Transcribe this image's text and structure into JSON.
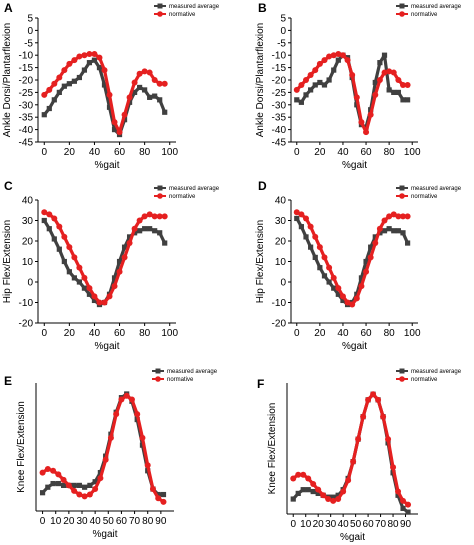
{
  "chart_data": [
    {
      "panel": "A",
      "type": "scatter",
      "xlabel": "%gait",
      "ylabel": "Ankle Dorsi/Plantarflexion",
      "xlim": [
        -5,
        105
      ],
      "ylim": [
        -45,
        5
      ],
      "xticks": [
        0,
        20,
        40,
        60,
        80,
        100
      ],
      "yticks": [
        -45,
        -40,
        -35,
        -30,
        -25,
        -20,
        -15,
        -10,
        -5,
        0,
        5
      ],
      "legend_position": "top-right",
      "series": [
        {
          "name": "measured average",
          "color": "#404040",
          "marker": "square",
          "x": [
            0,
            4,
            8,
            12,
            16,
            20,
            24,
            28,
            32,
            36,
            40,
            44,
            48,
            52,
            56,
            60,
            64,
            68,
            72,
            76,
            80,
            84,
            88,
            92,
            96
          ],
          "y": [
            -34,
            -31.5,
            -28,
            -25,
            -22.5,
            -21.5,
            -20.5,
            -19,
            -16,
            -13,
            -12,
            -15,
            -22,
            -31,
            -40,
            -42,
            -36,
            -29,
            -25,
            -23,
            -24,
            -27,
            -26.5,
            -28,
            -33
          ]
        },
        {
          "name": "normative",
          "color": "#e52020",
          "marker": "circle",
          "x": [
            0,
            4,
            8,
            12,
            16,
            20,
            24,
            28,
            32,
            36,
            40,
            44,
            48,
            52,
            56,
            60,
            64,
            68,
            72,
            76,
            80,
            84,
            88,
            92,
            96
          ],
          "y": [
            -26,
            -24,
            -21.5,
            -19,
            -16,
            -13.5,
            -12,
            -10.5,
            -10,
            -9.5,
            -9.5,
            -11,
            -16,
            -26,
            -37,
            -41,
            -34,
            -27,
            -21,
            -17.5,
            -16.5,
            -17,
            -20,
            -21.5,
            -21.5
          ]
        }
      ]
    },
    {
      "panel": "B",
      "type": "scatter",
      "xlabel": "%gait",
      "ylabel": "Ankle Dorsi/Plantarflexion",
      "xlim": [
        -5,
        105
      ],
      "ylim": [
        -45,
        5
      ],
      "xticks": [
        0,
        20,
        40,
        60,
        80,
        100
      ],
      "yticks": [
        -45,
        -40,
        -35,
        -30,
        -25,
        -20,
        -15,
        -10,
        -5,
        0,
        5
      ],
      "legend_position": "top-right",
      "series": [
        {
          "name": "measured average",
          "color": "#404040",
          "marker": "square",
          "x": [
            0,
            4,
            8,
            12,
            16,
            20,
            24,
            28,
            32,
            36,
            40,
            44,
            48,
            52,
            56,
            60,
            64,
            68,
            72,
            76,
            80,
            84,
            88,
            92,
            96
          ],
          "y": [
            -28,
            -29,
            -26,
            -24,
            -22,
            -21,
            -22,
            -20,
            -16,
            -12,
            -10,
            -11,
            -19,
            -30,
            -38,
            -39,
            -32,
            -21,
            -13,
            -10,
            -24,
            -25,
            -25,
            -28,
            -28
          ]
        },
        {
          "name": "normative",
          "color": "#e52020",
          "marker": "circle",
          "x": [
            0,
            4,
            8,
            12,
            16,
            20,
            24,
            28,
            32,
            36,
            40,
            44,
            48,
            52,
            56,
            60,
            64,
            68,
            72,
            76,
            80,
            84,
            88,
            92,
            96
          ],
          "y": [
            -24,
            -22,
            -20,
            -18,
            -16,
            -13.5,
            -12,
            -10.5,
            -10,
            -9.5,
            -10,
            -12,
            -18,
            -27,
            -37,
            -41,
            -34,
            -26,
            -20,
            -17,
            -16.5,
            -17,
            -20,
            -22,
            -22
          ]
        }
      ]
    },
    {
      "panel": "C",
      "type": "scatter",
      "xlabel": "%gait",
      "ylabel": "Hip Flex/Extension",
      "xlim": [
        -5,
        105
      ],
      "ylim": [
        -20,
        40
      ],
      "xticks": [
        0,
        20,
        40,
        60,
        80,
        100
      ],
      "yticks": [
        -20,
        -10,
        0,
        10,
        20,
        30,
        40
      ],
      "legend_position": "top-right",
      "series": [
        {
          "name": "measured average",
          "color": "#404040",
          "marker": "square",
          "x": [
            0,
            4,
            8,
            12,
            16,
            20,
            24,
            28,
            32,
            36,
            40,
            44,
            48,
            52,
            56,
            60,
            64,
            68,
            72,
            76,
            80,
            84,
            88,
            92,
            96
          ],
          "y": [
            30,
            26,
            21,
            16,
            10,
            5,
            2,
            0,
            -3,
            -6,
            -9,
            -11,
            -10,
            -6,
            2,
            10,
            17,
            22,
            24,
            25,
            26,
            26,
            25,
            24,
            19
          ]
        },
        {
          "name": "normative",
          "color": "#e52020",
          "marker": "circle",
          "x": [
            0,
            4,
            8,
            12,
            16,
            20,
            24,
            28,
            32,
            36,
            40,
            44,
            48,
            52,
            56,
            60,
            64,
            68,
            72,
            76,
            80,
            84,
            88,
            92,
            96
          ],
          "y": [
            34,
            33,
            31,
            27,
            22,
            17,
            12,
            7,
            2,
            -3,
            -7,
            -10,
            -10,
            -7,
            -2,
            5,
            12,
            19,
            26,
            30,
            32,
            33,
            32,
            32,
            32
          ]
        }
      ]
    },
    {
      "panel": "D",
      "type": "scatter",
      "xlabel": "%gait",
      "ylabel": "Hip Flex/Extension",
      "xlim": [
        -5,
        105
      ],
      "ylim": [
        -20,
        40
      ],
      "xticks": [
        0,
        20,
        40,
        60,
        80,
        100
      ],
      "yticks": [
        -20,
        -10,
        0,
        10,
        20,
        30,
        40
      ],
      "legend_position": "top-right",
      "series": [
        {
          "name": "measured average",
          "color": "#404040",
          "marker": "square",
          "x": [
            0,
            4,
            8,
            12,
            16,
            20,
            24,
            28,
            32,
            36,
            40,
            44,
            48,
            52,
            56,
            60,
            64,
            68,
            72,
            76,
            80,
            84,
            88,
            92,
            96
          ],
          "y": [
            31,
            27,
            22,
            17,
            12,
            7,
            3,
            0,
            -3,
            -6,
            -9,
            -11,
            -10,
            -6,
            2,
            10,
            17,
            22,
            24,
            25,
            26,
            25,
            25,
            24,
            19
          ]
        },
        {
          "name": "normative",
          "color": "#e52020",
          "marker": "circle",
          "x": [
            0,
            4,
            8,
            12,
            16,
            20,
            24,
            28,
            32,
            36,
            40,
            44,
            48,
            52,
            56,
            60,
            64,
            68,
            72,
            76,
            80,
            84,
            88,
            92,
            96
          ],
          "y": [
            34,
            33,
            31,
            27,
            22,
            17,
            12,
            7,
            2,
            -3,
            -7,
            -10,
            -11,
            -8,
            -2,
            5,
            12,
            19,
            26,
            30,
            32,
            33,
            32,
            32,
            32
          ]
        }
      ]
    },
    {
      "panel": "E",
      "type": "scatter",
      "xlabel": "%gait",
      "ylabel": "Knee Flex/Extension",
      "xlim": [
        -5,
        100
      ],
      "ylim": [
        0,
        70
      ],
      "xticks": [
        0,
        10,
        20,
        30,
        40,
        50,
        60,
        70,
        80,
        90
      ],
      "yticks": [],
      "legend_position": "top-right",
      "series": [
        {
          "name": "measured average",
          "color": "#404040",
          "marker": "square",
          "x": [
            0,
            4,
            8,
            12,
            16,
            20,
            24,
            28,
            32,
            36,
            40,
            44,
            48,
            52,
            56,
            60,
            64,
            68,
            72,
            76,
            80,
            84,
            88,
            92
          ],
          "y": [
            10,
            13,
            15,
            15,
            14,
            14,
            14,
            14,
            13,
            14,
            16,
            21,
            30,
            42,
            54,
            62,
            64,
            60,
            50,
            36,
            22,
            12,
            9,
            9
          ]
        },
        {
          "name": "normative",
          "color": "#e52020",
          "marker": "circle",
          "x": [
            0,
            4,
            8,
            12,
            16,
            20,
            24,
            28,
            32,
            36,
            40,
            44,
            48,
            52,
            56,
            60,
            64,
            68,
            72,
            76,
            80,
            84,
            88,
            92
          ],
          "y": [
            21,
            23,
            22,
            20,
            17,
            14,
            11,
            9,
            8,
            9,
            12,
            18,
            28,
            40,
            53,
            61,
            63,
            61,
            53,
            40,
            25,
            12,
            7,
            5
          ]
        }
      ]
    },
    {
      "panel": "F",
      "type": "scatter",
      "xlabel": "%gait",
      "ylabel": "Knee Flex/Extension",
      "xlim": [
        -5,
        100
      ],
      "ylim": [
        0,
        70
      ],
      "xticks": [
        0,
        10,
        20,
        30,
        40,
        50,
        60,
        70,
        80,
        90
      ],
      "yticks": [],
      "legend_position": "top-right",
      "series": [
        {
          "name": "measured average",
          "color": "#404040",
          "marker": "square",
          "x": [
            0,
            4,
            8,
            12,
            16,
            20,
            24,
            28,
            32,
            36,
            40,
            44,
            48,
            52,
            56,
            60,
            64,
            68,
            72,
            76,
            80,
            84,
            88,
            92
          ],
          "y": [
            8,
            11,
            13,
            13,
            12,
            11,
            10,
            9,
            9,
            10,
            13,
            19,
            28,
            40,
            52,
            61,
            64,
            61,
            52,
            38,
            22,
            10,
            3,
            1
          ]
        },
        {
          "name": "normative",
          "color": "#e52020",
          "marker": "circle",
          "x": [
            0,
            4,
            8,
            12,
            16,
            20,
            24,
            28,
            32,
            36,
            40,
            44,
            48,
            52,
            56,
            60,
            64,
            68,
            72,
            76,
            80,
            84,
            88,
            92
          ],
          "y": [
            19,
            21,
            21,
            19,
            16,
            13,
            10,
            8,
            7,
            8,
            12,
            18,
            28,
            40,
            52,
            61,
            64,
            61,
            52,
            40,
            25,
            12,
            7,
            5
          ]
        }
      ]
    }
  ]
}
